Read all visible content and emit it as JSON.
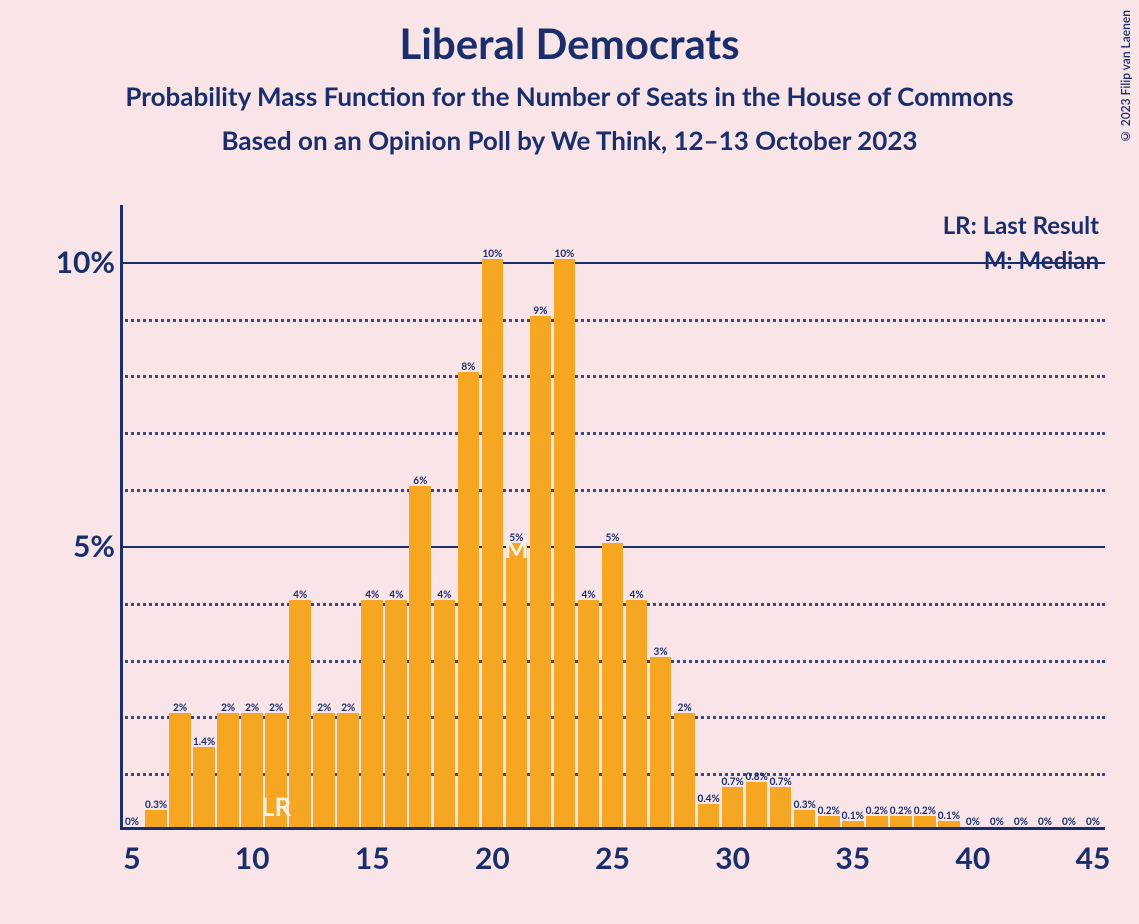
{
  "title": "Liberal Democrats",
  "subtitle1": "Probability Mass Function for the Number of Seats in the House of Commons",
  "subtitle2": "Based on an Opinion Poll by We Think, 12–13 October 2023",
  "copyright": "© 2023 Filip van Laenen",
  "legend": {
    "lr": "LR: Last Result",
    "m": "M: Median"
  },
  "chart": {
    "type": "bar",
    "bar_color": "#f5a623",
    "axis_color": "#1a2e6b",
    "text_color": "#1a2e6b",
    "background_color": "#f9e4e8",
    "title_fontsize": 42,
    "subtitle_fontsize": 26,
    "axis_label_fontsize": 30,
    "bar_label_fontsize": 10,
    "legend_fontsize": 24,
    "ylim": [
      0,
      11
    ],
    "y_major_ticks": [
      {
        "v": 5,
        "label": "5%"
      },
      {
        "v": 10,
        "label": "10%"
      }
    ],
    "y_minor_step": 1,
    "xlim": [
      4.5,
      45.5
    ],
    "x_ticks": [
      5,
      10,
      15,
      20,
      25,
      30,
      35,
      40,
      45
    ],
    "bar_width_ratio": 0.9,
    "lr_position": 11,
    "median_position": 21,
    "bars": [
      {
        "x": 5,
        "v": 0,
        "label": "0%"
      },
      {
        "x": 6,
        "v": 0.3,
        "label": "0.3%"
      },
      {
        "x": 7,
        "v": 2,
        "label": "2%"
      },
      {
        "x": 8,
        "v": 1.4,
        "label": "1.4%"
      },
      {
        "x": 9,
        "v": 2,
        "label": "2%"
      },
      {
        "x": 10,
        "v": 2,
        "label": "2%"
      },
      {
        "x": 11,
        "v": 2,
        "label": "2%"
      },
      {
        "x": 12,
        "v": 4,
        "label": "4%"
      },
      {
        "x": 13,
        "v": 2,
        "label": "2%"
      },
      {
        "x": 14,
        "v": 2,
        "label": "2%"
      },
      {
        "x": 15,
        "v": 4,
        "label": "4%"
      },
      {
        "x": 16,
        "v": 4,
        "label": "4%"
      },
      {
        "x": 17,
        "v": 6,
        "label": "6%"
      },
      {
        "x": 18,
        "v": 4,
        "label": "4%"
      },
      {
        "x": 19,
        "v": 8,
        "label": "8%"
      },
      {
        "x": 20,
        "v": 10,
        "label": "10%"
      },
      {
        "x": 21,
        "v": 5,
        "label": "5%"
      },
      {
        "x": 22,
        "v": 9,
        "label": "9%"
      },
      {
        "x": 23,
        "v": 10,
        "label": "10%"
      },
      {
        "x": 24,
        "v": 4,
        "label": "4%"
      },
      {
        "x": 25,
        "v": 5,
        "label": "5%"
      },
      {
        "x": 26,
        "v": 4,
        "label": "4%"
      },
      {
        "x": 27,
        "v": 3,
        "label": "3%"
      },
      {
        "x": 28,
        "v": 2,
        "label": "2%"
      },
      {
        "x": 29,
        "v": 0.4,
        "label": "0.4%"
      },
      {
        "x": 30,
        "v": 0.7,
        "label": "0.7%"
      },
      {
        "x": 31,
        "v": 0.8,
        "label": "0.8%"
      },
      {
        "x": 32,
        "v": 0.7,
        "label": "0.7%"
      },
      {
        "x": 33,
        "v": 0.3,
        "label": "0.3%"
      },
      {
        "x": 34,
        "v": 0.2,
        "label": "0.2%"
      },
      {
        "x": 35,
        "v": 0.1,
        "label": "0.1%"
      },
      {
        "x": 36,
        "v": 0.2,
        "label": "0.2%"
      },
      {
        "x": 37,
        "v": 0.2,
        "label": "0.2%"
      },
      {
        "x": 38,
        "v": 0.2,
        "label": "0.2%"
      },
      {
        "x": 39,
        "v": 0.1,
        "label": "0.1%"
      },
      {
        "x": 40,
        "v": 0,
        "label": "0%"
      },
      {
        "x": 41,
        "v": 0,
        "label": "0%"
      },
      {
        "x": 42,
        "v": 0,
        "label": "0%"
      },
      {
        "x": 43,
        "v": 0,
        "label": "0%"
      },
      {
        "x": 44,
        "v": 0,
        "label": "0%"
      },
      {
        "x": 45,
        "v": 0,
        "label": "0%"
      }
    ]
  }
}
